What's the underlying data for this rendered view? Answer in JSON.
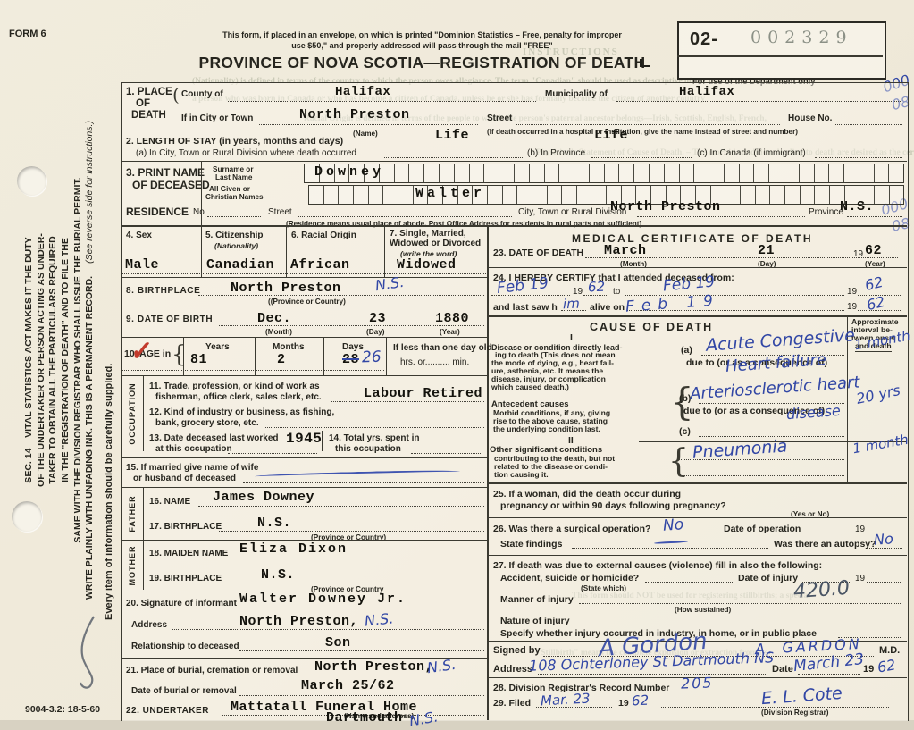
{
  "header": {
    "form_no": "FORM 6",
    "envelope_line1": "This form, if placed in an envelope, on which is printed \"Dominion Statistics – Free, penalty for improper",
    "envelope_line2": "use $50,\" and properly addressed will pass through the mail \"FREE\"",
    "title": "PROVINCE OF NOVA SCOTIA—REGISTRATION OF DEATH",
    "dept_prefix": "02-",
    "dept_serial": "002329",
    "dept_caption": "For use of the Department only",
    "margin_hw_a1": "000",
    "margin_hw_a2": "08",
    "margin_hw_b1": "000",
    "margin_hw_b2": "08",
    "footer_code": "9004-3.2: 18-5-60"
  },
  "sidebar": {
    "line1": "SEC. 14 – VITAL STATISTICS ACT MAKES IT THE DUTY",
    "line2": "OF THE UNDERTAKER OR PERSON ACTING AS UNDER-",
    "line3": "TAKER TO OBTAIN ALL THE PARTICULARS REQUIRED",
    "line4": "IN THE \"REGISTRATION OF DEATH\" AND TO FILE THE",
    "line5": "SAME WITH THE DIVISION REGISTRAR WHO SHALL ISSUE THE BURIAL PERMIT.",
    "line6": "WRITE PLAINLY WITH UNFADING INK. THIS IS A PERMANENT RECORD.",
    "see_reverse": "(See reverse side for instructions.)",
    "every_item": "Every item of information should be carefully supplied."
  },
  "s1": {
    "num": "1. PLACE",
    "num2": "OF",
    "num3": "DEATH",
    "county_label": "County of",
    "county_value": "Halifax",
    "municipality_label": "Municipality of",
    "municipality_value": "Halifax",
    "city_label": "If in City or Town",
    "city_value": "North Preston",
    "name_sub": "(Name)",
    "street_label": "Street",
    "house_label": "House No.",
    "hospital_note": "(If death occurred in a hospital or institution, give the name instead of street and number)"
  },
  "s2": {
    "label": "2. LENGTH OF STAY (in years, months and days)",
    "a_label": "(a) In City, Town or Rural Division where death occurred",
    "a_value": "Life",
    "b_label": "(b) In Province",
    "b_value": "Life",
    "c_label": "(c) In Canada (if immigrant)"
  },
  "s3": {
    "num1": "3. PRINT NAME",
    "num2": "OF DECEASED",
    "surname_label1": "Surname or",
    "surname_label2": "Last Name",
    "given_label1": "All Given or",
    "given_label2": "Christian Names",
    "surname_value": "Downey",
    "given_value": "Walter"
  },
  "residence": {
    "label": "RESIDENCE",
    "no_label": "No",
    "street_label": "Street",
    "city_label": "City, Town or Rural Division",
    "city_value": "North Preston",
    "province_label": "Province",
    "province_value": "N.S.",
    "note": "(Residence means usual place of abode. Post Office Address for residents in rural parts not sufficient)"
  },
  "s4": {
    "label": "4. Sex",
    "value": "Male"
  },
  "s5": {
    "label": "5. Citizenship",
    "sub": "(Nationality)",
    "value": "Canadian"
  },
  "s6": {
    "label": "6. Racial Origin",
    "value": "African"
  },
  "s7": {
    "label1": "7. Single, Married,",
    "label2": "Widowed or Divorced",
    "sub": "(write the word)",
    "value": "Widowed"
  },
  "s8": {
    "label": "8. BIRTHPLACE",
    "value": "North Preston",
    "hw": "N.S.",
    "sub": "((Province or Country)"
  },
  "s9": {
    "label": "9. DATE OF BIRTH",
    "month": "Dec.",
    "day": "23",
    "year": "1880",
    "month_sub": "(Month)",
    "day_sub": "(Day)",
    "year_sub": "(Year)"
  },
  "s10": {
    "label": "10. AGE in",
    "brace": "{",
    "years_label": "Years",
    "years": "81",
    "months_label": "Months",
    "months": "2",
    "days_label": "Days",
    "days_struck": "28",
    "days_hw": "26",
    "less_label": "If less than one day old",
    "hrs_label": "hrs. or.......... min."
  },
  "occupation": {
    "strip": "OCCUPATION",
    "s11a": "11. Trade, profession, or kind of work as",
    "s11b": "fisherman, office clerk, sales clerk, etc.",
    "s11_value": "Labour Retired",
    "s12a": "12. Kind of industry or business, as fishing,",
    "s12b": "bank, grocery store, etc.",
    "s13a": "13. Date deceased last worked",
    "s13b": "at this occupation",
    "s13_value": "1945",
    "s14a": "14. Total yrs. spent in",
    "s14b": "this occupation"
  },
  "s15": {
    "a": "15. If married give name of wife",
    "b": "or husband of deceased"
  },
  "father": {
    "strip": "FATHER",
    "s16_label": "16. NAME",
    "s16_value": "James Downey",
    "s17_label": "17. BIRTHPLACE",
    "s17_value": "N.S.",
    "s17_sub": "(Province or Country)"
  },
  "mother": {
    "strip": "MOTHER",
    "s18_label": "18. MAIDEN NAME",
    "s18_value": "Eliza Dixon",
    "s19_label": "19. BIRTHPLACE",
    "s19_value": "N.S.",
    "s19_sub": "(Province or Country"
  },
  "s20": {
    "label": "20. Signature of informant",
    "value": "Walter Downey Jr.",
    "address_label": "Address",
    "address_value": "North Preston,",
    "address_hw": "N.S.",
    "rel_label": "Relationship to deceased",
    "rel_value": "Son"
  },
  "s21": {
    "label": "21. Place of burial, cremation or removal",
    "value": "North Preston,",
    "hw": "N.S.",
    "date_label": "Date of burial or removal",
    "date_value": "March 25/62"
  },
  "s22": {
    "label": "22. UNDERTAKER",
    "value": "Mattatall Funeral Home",
    "sub": "(Name and address)",
    "value2": "Dartmouth",
    "hw": "N.S."
  },
  "med": {
    "title": "MEDICAL CERTIFICATE OF DEATH",
    "s23_label": "23. DATE OF DEATH",
    "s23_month": "March",
    "s23_day": "21",
    "s23_pre": "19",
    "s23_year": "62",
    "month_sub": "(Month)",
    "day_sub": "(Day)",
    "year_sub": "(Year)",
    "s24_label": "24. I HEREBY CERTIFY that I attended deceased from:",
    "s24_from_hw": "Feb 19",
    "s24_pre_a": "19",
    "s24_y1": "62",
    "to_label": "to",
    "s24_to_hw": "Feb 19",
    "s24_pre_b": "19",
    "s24_y2": "62",
    "s24_last": "and last saw h",
    "s24_him": "im",
    "s24_alive": "alive on",
    "s24_on_hw": "Feb 19",
    "s24_pre_c": "19",
    "s24_y3": "62"
  },
  "cause": {
    "title": "CAUSE OF DEATH",
    "interval_header": [
      "Approximate",
      "interval be-",
      "tween onset",
      "and death"
    ],
    "roman1": "I",
    "p1": [
      "Disease or condition directly lead-",
      "ing to death (This does not mean",
      "the mode of dying, e.g., heart fail-",
      "ure, asthenia, etc. It means the",
      "disease, injury, or complication",
      "which caused death.)"
    ],
    "antecedent_bold": "Antecedent causes",
    "p2": [
      "Morbid conditions, if any, giving",
      "rise to the above cause, stating",
      "the underlying condition last."
    ],
    "roman2": "II",
    "other_bold": "Other significant conditions",
    "p3": [
      "contributing to the death, but not",
      "related to the disease or condi-",
      "tion causing it."
    ],
    "a_label": "(a)",
    "due1": "due to (or as a consequence of)",
    "b_label": "(b)",
    "due2": "due to (or as a consequence of)",
    "c_label": "(c)",
    "brace": "{",
    "a_hw1": "Acute Congestive",
    "a_hw2": "Heart failure",
    "a_interval": "1 month",
    "b_hw1": "Arteriosclerotic heart",
    "b_hw2": "disease",
    "b_interval": "20 yrs",
    "ii_hw": "Pneumonia",
    "ii_interval": "1 month"
  },
  "s25": {
    "a": "25. If a woman, did the death occur during",
    "b": "pregnancy or within 90 days following pregnancy?",
    "sub": "(Yes or No)"
  },
  "s26": {
    "a": "26. Was there a surgical operation?",
    "hw1": "No",
    "date_label": "Date of operation",
    "pre19": "19",
    "b": "State findings",
    "autopsy_label": "Was there an autopsy?",
    "hw2": "No"
  },
  "s27": {
    "a": "27. If death was due to external causes (violence) fill in also the following:–",
    "b": "Accident, suicide or homicide?",
    "state_sub": "(State which)",
    "injury_label": "Date of injury",
    "pre19": "19",
    "manner": "Manner of injury",
    "how_sub": "(How sustained)",
    "hw_code": "420.0",
    "nature": "Nature of injury",
    "specify": "Specify whether injury occurred in industry, in home, or in public place"
  },
  "signed": {
    "label": "Signed by",
    "script": "A Gordon",
    "print_hw": "A. GARDON",
    "md": "M.D.",
    "address_label": "Address",
    "address_hw": "108 Ochterloney St Dartmouth NS",
    "date_label": "Date",
    "date_hw": "March 23",
    "pre19": "19",
    "year_hw": "62"
  },
  "s28": {
    "label": "28. Division Registrar's Record Number",
    "hw": "205"
  },
  "s29": {
    "label": "29. Filed",
    "date_hw": "Mar. 23",
    "pre19": "19",
    "year_hw": "62",
    "registrar_hw": "E. L. Cote",
    "sub": "(Division Registrar)"
  },
  "bleed": [
    "INSTRUCTIONS",
    "(Nationality) is defined in terms of the country to which the person owes allegiance. The term \"Canadian\" should be used as descriptive of",
    "a person who was born in Canada or who has become a citizen of Canada, unless he or she has formally become the citizen of another country",
    "Racial Origin is defined in terms of the people to which the person's paternal ancestor belongs—Irish, Scottish, English, French,",
    "Physician's Statement of Cause of Death. – The morbid conditions leading to death are desired as the certificate",
    "This form should NOT be used for registering stillbirths; a special",
    "\"Stillbirth\" means the complete expulsion or extraction from its"
  ]
}
